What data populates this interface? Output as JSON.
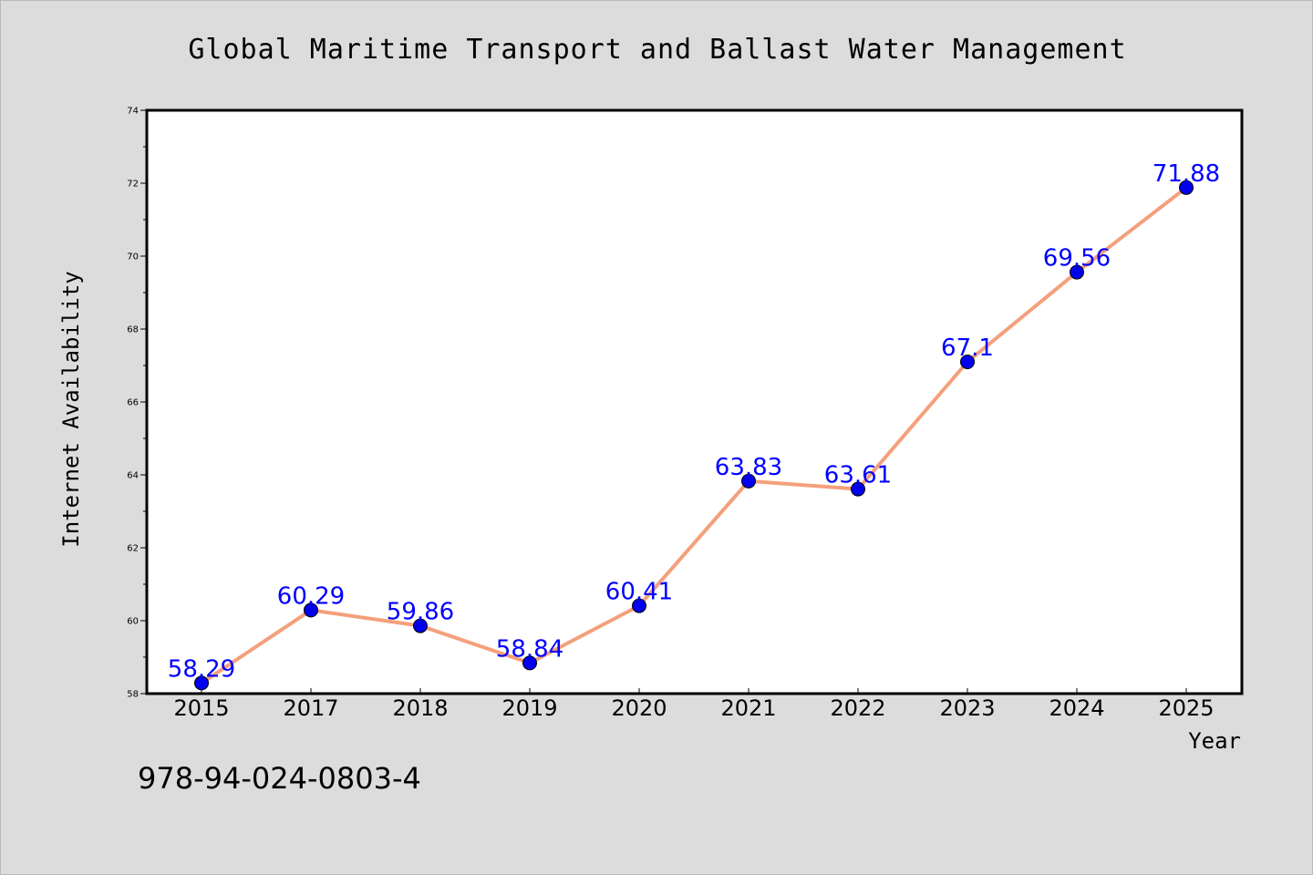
{
  "chart_data": {
    "type": "line",
    "title": "Global Maritime Transport and Ballast Water Management",
    "xlabel": "Year",
    "ylabel": "Internet Availability",
    "categories": [
      "2015",
      "2017",
      "2018",
      "2019",
      "2020",
      "2021",
      "2022",
      "2023",
      "2024",
      "2025"
    ],
    "series": [
      {
        "values": [
          58.29,
          60.29,
          59.86,
          58.84,
          60.41,
          63.83,
          63.61,
          67.1,
          69.56,
          71.88
        ]
      }
    ],
    "data_labels": [
      "58.29",
      "60.29",
      "59.86",
      "58.84",
      "60.41",
      "63.83",
      "63.61",
      "67.1",
      "69.56",
      "71.88"
    ],
    "ylim": [
      58,
      74
    ],
    "yticks": [
      58,
      60,
      62,
      64,
      66,
      68,
      70,
      72,
      74
    ],
    "grid": false,
    "line_color": "#f4a07c",
    "marker_color": "#0000ee",
    "label_color": "#0000ff",
    "background_color": "#dcdcdc"
  },
  "annotation": "978-94-024-0803-4"
}
